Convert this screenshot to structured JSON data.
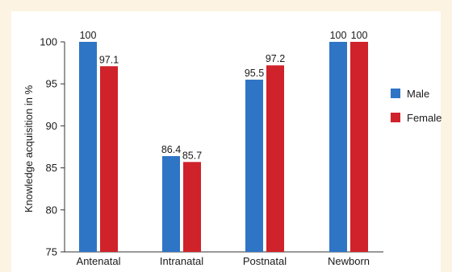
{
  "chart_data": {
    "type": "bar",
    "categories": [
      "Antenatal",
      "Intranatal",
      "Postnatal",
      "Newborn"
    ],
    "series": [
      {
        "name": "Male",
        "values": [
          100,
          86.4,
          95.5,
          100
        ],
        "labels": [
          "100",
          "86.4",
          "95.5",
          "100"
        ],
        "color": "#2e75c6"
      },
      {
        "name": "Female",
        "values": [
          97.1,
          85.7,
          97.2,
          100
        ],
        "labels": [
          "97.1",
          "85.7",
          "97.2",
          "100"
        ],
        "color": "#d0222a"
      }
    ],
    "title": "",
    "xlabel": "",
    "ylabel": "Knowledge acquisition in %",
    "ylim": [
      75,
      100
    ],
    "yticks": [
      "75",
      "80",
      "85",
      "90",
      "95",
      "100"
    ],
    "grid": false,
    "legend_position": "right"
  }
}
